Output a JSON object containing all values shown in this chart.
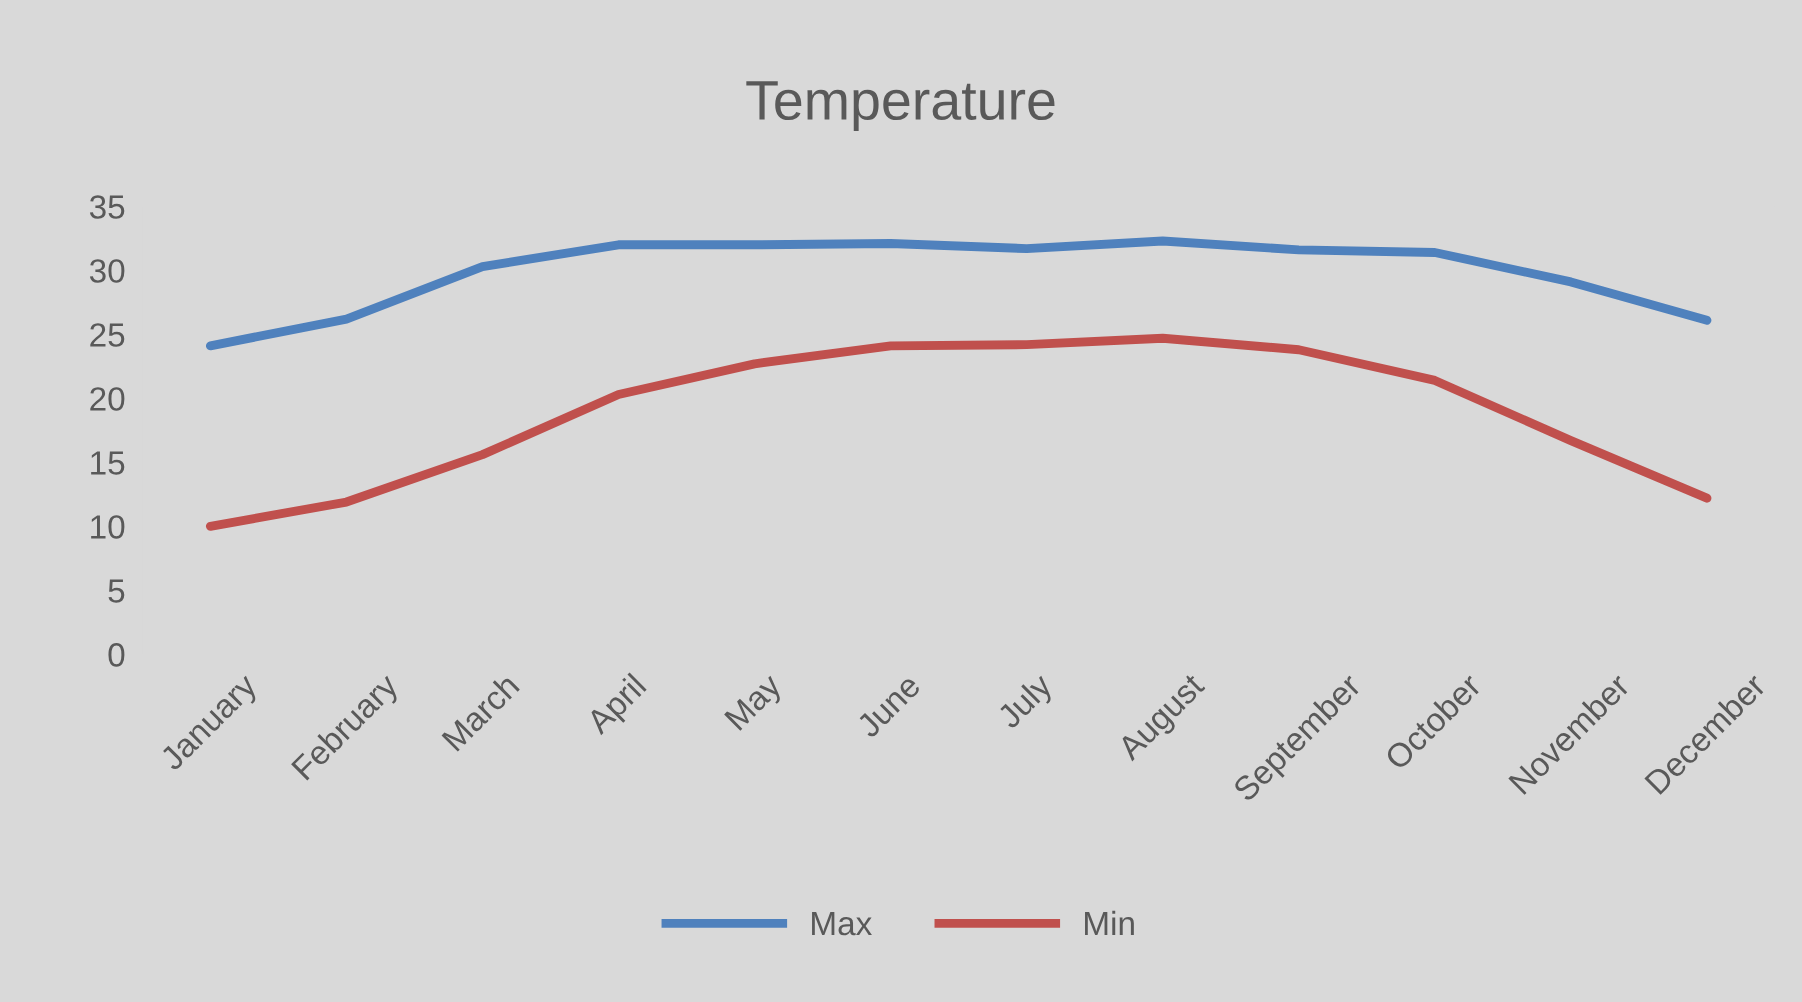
{
  "chart_data": {
    "type": "line",
    "title": "Temperature",
    "categories": [
      "January",
      "February",
      "March",
      "April",
      "May",
      "June",
      "July",
      "August",
      "September",
      "October",
      "November",
      "December"
    ],
    "series": [
      {
        "name": "Max",
        "color": "#4f81bd",
        "values": [
          24.1,
          26.2,
          30.3,
          32.0,
          32.0,
          32.1,
          31.7,
          32.3,
          31.6,
          31.4,
          29.1,
          26.1
        ]
      },
      {
        "name": "Min",
        "color": "#c0504d",
        "values": [
          10.0,
          11.9,
          15.6,
          20.3,
          22.7,
          24.1,
          24.2,
          24.7,
          23.8,
          21.4,
          16.7,
          12.2
        ]
      }
    ],
    "ylim": [
      0,
      35
    ],
    "yticks": [
      0,
      5,
      10,
      15,
      20,
      25,
      30,
      35
    ],
    "grid": false,
    "legend": "bottom",
    "marker": "none",
    "line_style": "solid"
  }
}
